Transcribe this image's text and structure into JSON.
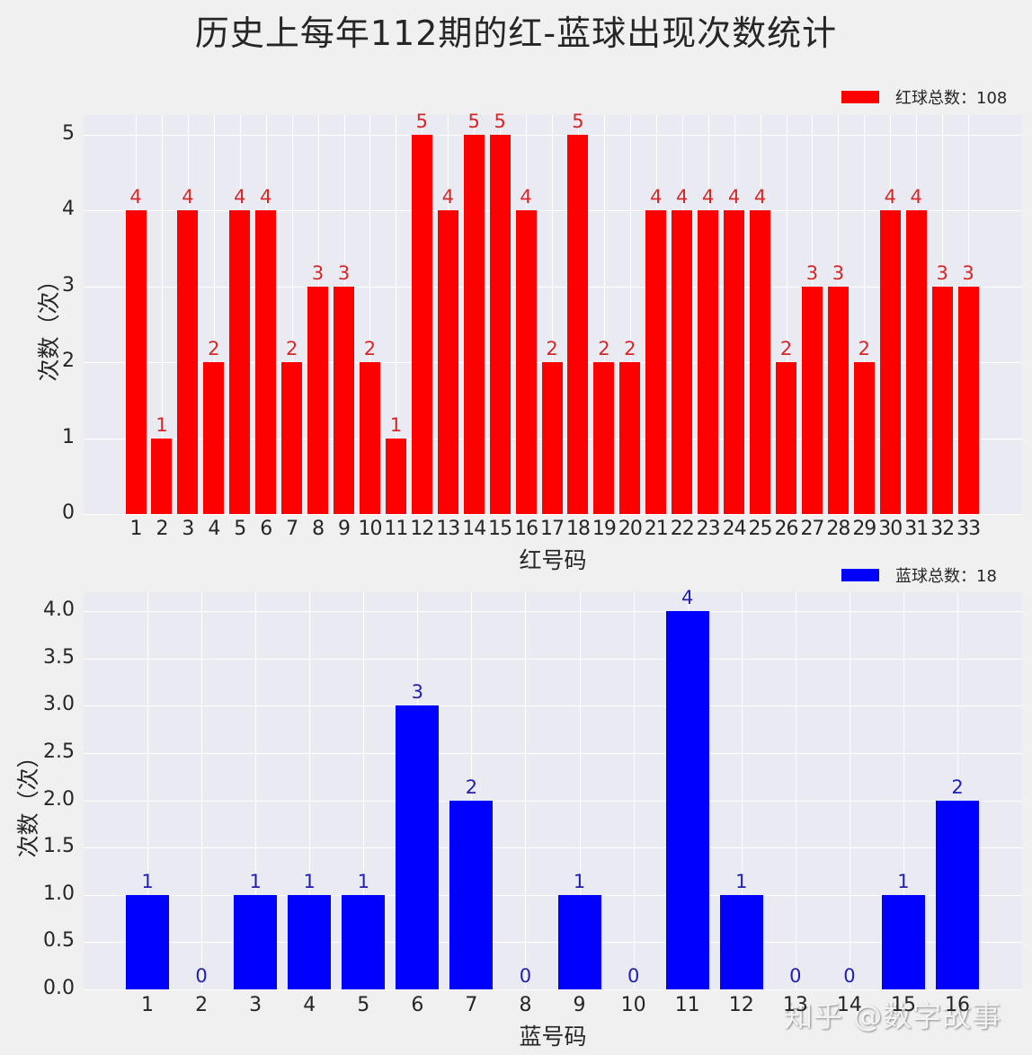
{
  "figure": {
    "title": "历史上每年112期的红-蓝球出现次数统计",
    "watermark": "知乎 @数字故事"
  },
  "chart_data": [
    {
      "type": "bar",
      "title": "",
      "xlabel": "红号码",
      "ylabel": "次数（次）",
      "legend": "红球总数：108",
      "legend_position": "upper right (outside, above plot)",
      "color": "#ff0000",
      "label_color": "#d62728",
      "grid": true,
      "ylim": [
        0,
        5.25
      ],
      "yticks": [
        "0",
        "1",
        "2",
        "3",
        "4",
        "5"
      ],
      "ytick_values": [
        0,
        1,
        2,
        3,
        4,
        5
      ],
      "categories": [
        "1",
        "2",
        "3",
        "4",
        "5",
        "6",
        "7",
        "8",
        "9",
        "10",
        "11",
        "12",
        "13",
        "14",
        "15",
        "16",
        "17",
        "18",
        "19",
        "20",
        "21",
        "22",
        "23",
        "24",
        "25",
        "26",
        "27",
        "28",
        "29",
        "30",
        "31",
        "32",
        "33"
      ],
      "values": [
        4,
        1,
        4,
        2,
        4,
        4,
        2,
        3,
        3,
        2,
        1,
        5,
        4,
        5,
        5,
        4,
        2,
        5,
        2,
        2,
        4,
        4,
        4,
        4,
        4,
        2,
        3,
        3,
        2,
        4,
        4,
        3,
        3
      ]
    },
    {
      "type": "bar",
      "title": "",
      "xlabel": "蓝号码",
      "ylabel": "次数（次）",
      "legend": "蓝球总数：18",
      "legend_position": "upper right (outside, above plot)",
      "color": "#0000ff",
      "label_color": "#1f1fb4",
      "grid": true,
      "ylim": [
        0,
        4.2
      ],
      "yticks": [
        "0.0",
        "0.5",
        "1.0",
        "1.5",
        "2.0",
        "2.5",
        "3.0",
        "3.5",
        "4.0"
      ],
      "ytick_values": [
        0,
        0.5,
        1,
        1.5,
        2,
        2.5,
        3,
        3.5,
        4
      ],
      "categories": [
        "1",
        "2",
        "3",
        "4",
        "5",
        "6",
        "7",
        "8",
        "9",
        "10",
        "11",
        "12",
        "13",
        "14",
        "15",
        "16"
      ],
      "values": [
        1,
        0,
        1,
        1,
        1,
        3,
        2,
        0,
        1,
        0,
        4,
        1,
        0,
        0,
        1,
        2
      ]
    }
  ]
}
